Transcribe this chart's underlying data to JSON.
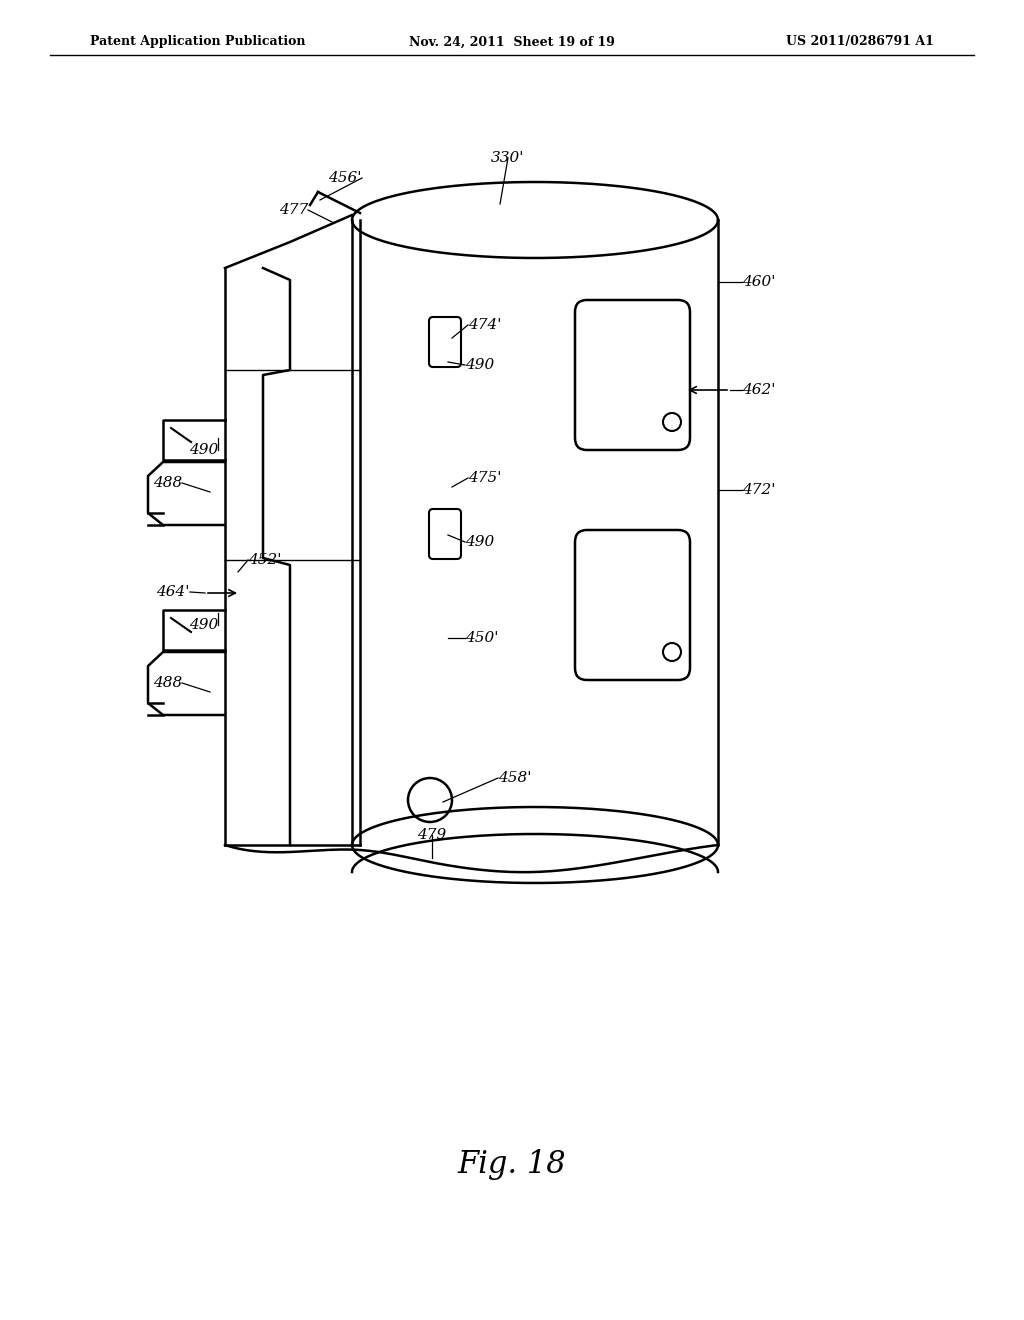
{
  "title_left": "Patent Application Publication",
  "title_mid": "Nov. 24, 2011  Sheet 19 of 19",
  "title_right": "US 2011/0286791 A1",
  "fig_label": "Fig. 18",
  "background": "#ffffff",
  "line_color": "#000000"
}
